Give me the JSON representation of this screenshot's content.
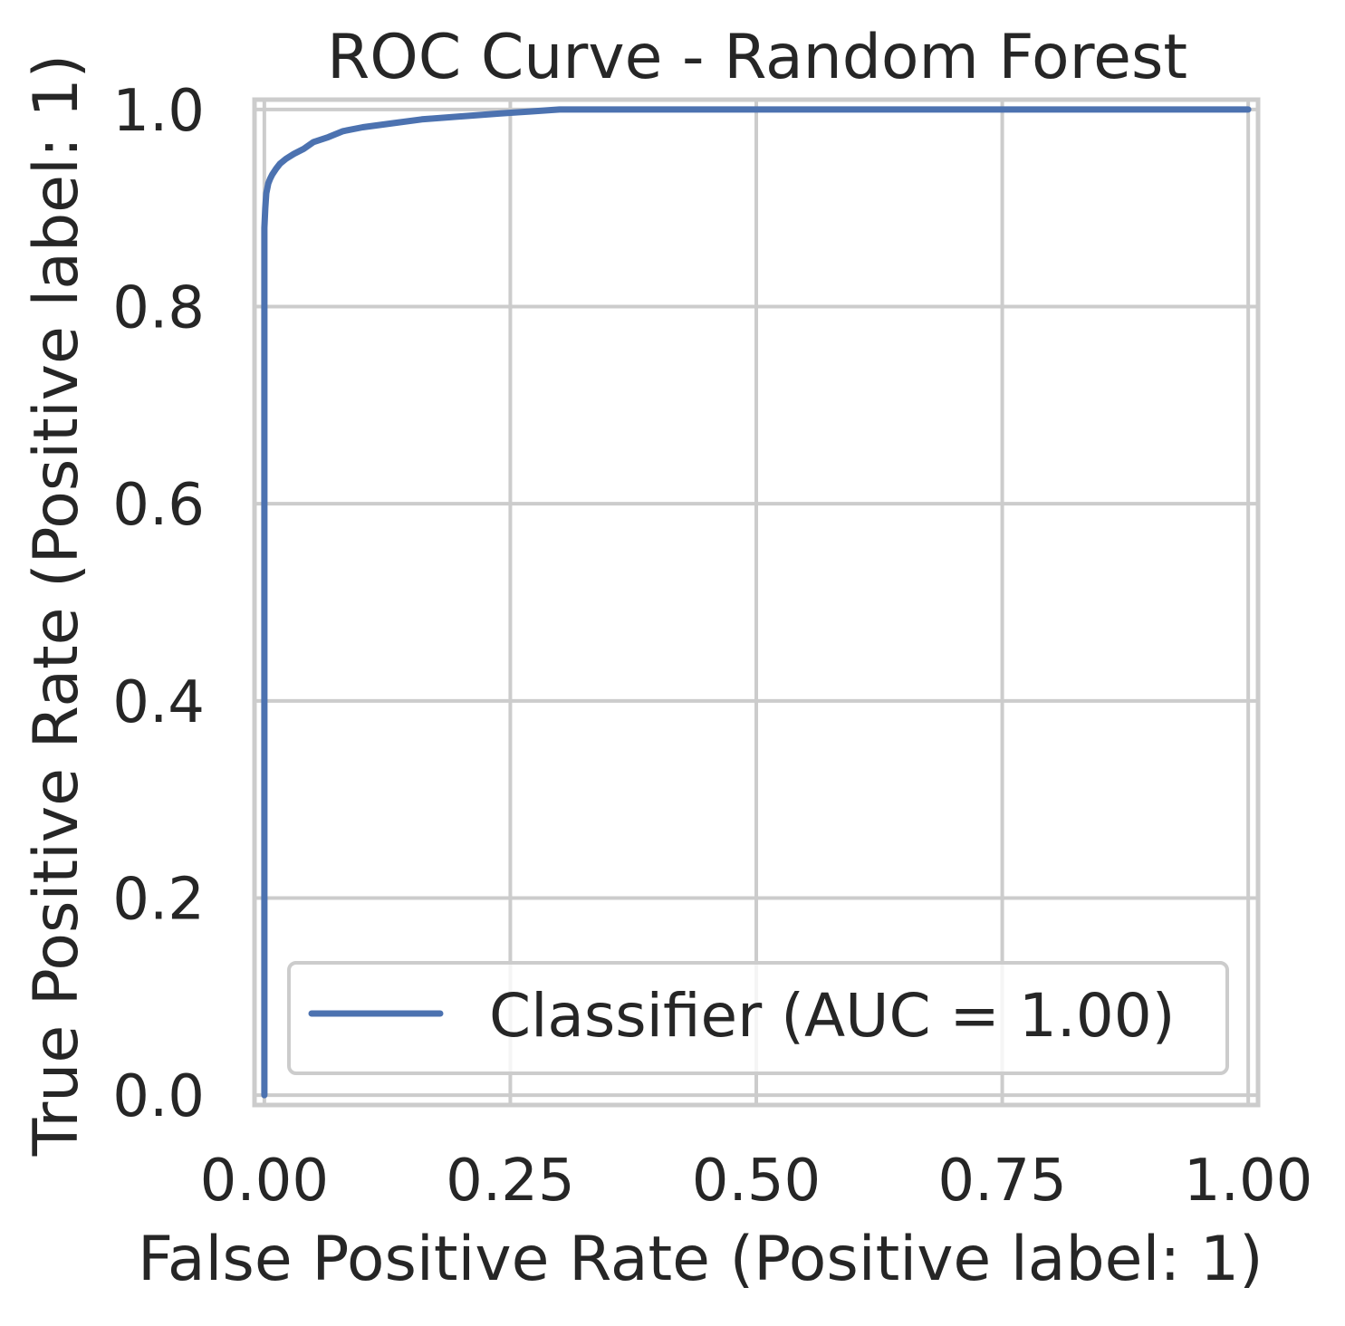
{
  "chart_data": {
    "type": "line",
    "title": "ROC Curve - Random Forest",
    "xlabel": "False Positive Rate (Positive label: 1)",
    "ylabel": "True Positive Rate (Positive label: 1)",
    "xlim": [
      -0.01,
      1.01
    ],
    "ylim": [
      -0.01,
      1.01
    ],
    "x_ticks": [
      0.0,
      0.25,
      0.5,
      0.75,
      1.0
    ],
    "x_tick_labels": [
      "0.00",
      "0.25",
      "0.50",
      "0.75",
      "1.00"
    ],
    "y_ticks": [
      0.0,
      0.2,
      0.4,
      0.6,
      0.8,
      1.0
    ],
    "y_tick_labels": [
      "0.0",
      "0.2",
      "0.4",
      "0.6",
      "0.8",
      "1.0"
    ],
    "grid": true,
    "legend_position": "lower-right",
    "series": [
      {
        "name": "Classifier (AUC = 1.00)",
        "color": "#4c72b0",
        "x": [
          0.0,
          0.0,
          0.0,
          0.001,
          0.002,
          0.004,
          0.006,
          0.008,
          0.012,
          0.016,
          0.022,
          0.03,
          0.04,
          0.05,
          0.065,
          0.08,
          0.1,
          0.13,
          0.16,
          0.2,
          0.24,
          0.27,
          0.3,
          0.5,
          0.75,
          1.0
        ],
        "y": [
          0.0,
          0.85,
          0.88,
          0.9,
          0.915,
          0.925,
          0.93,
          0.934,
          0.94,
          0.945,
          0.95,
          0.955,
          0.96,
          0.967,
          0.972,
          0.978,
          0.982,
          0.986,
          0.99,
          0.993,
          0.996,
          0.998,
          1.0,
          1.0,
          1.0,
          1.0
        ]
      }
    ]
  }
}
